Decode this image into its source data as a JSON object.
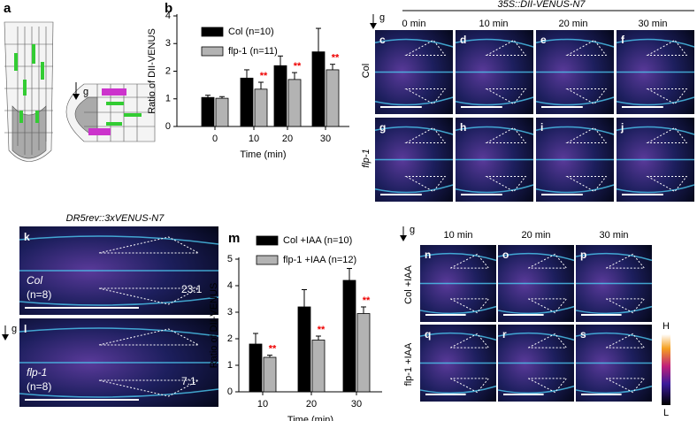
{
  "chart_data": [
    {
      "type": "bar",
      "label": "b",
      "y_label": "Ratio of DII-VENUS",
      "x_label": "Time (min)",
      "categories": [
        "0",
        "10",
        "20",
        "30"
      ],
      "series": [
        {
          "name": "Col (n=10)",
          "color": "#000000",
          "values": [
            1.05,
            1.75,
            2.2,
            2.7
          ],
          "errors": [
            0.08,
            0.3,
            0.35,
            0.85
          ],
          "labels": [
            null,
            null,
            null,
            null
          ]
        },
        {
          "name": "flp-1 (n=11)",
          "color": "#b3b3b3",
          "values": [
            1.02,
            1.35,
            1.7,
            2.05
          ],
          "errors": [
            0.06,
            0.25,
            0.25,
            0.2
          ],
          "labels": [
            null,
            "**",
            "**",
            "**"
          ]
        }
      ],
      "ylim": [
        0,
        4
      ],
      "yticks": [
        0,
        1,
        2,
        3,
        4
      ]
    },
    {
      "type": "bar",
      "label": "m",
      "y_label": "Ratio of DII-VENUS",
      "x_label": "Time (min)",
      "categories": [
        "10",
        "20",
        "30"
      ],
      "series": [
        {
          "name": "Col +IAA (n=10)",
          "color": "#000000",
          "values": [
            1.8,
            3.2,
            4.2
          ],
          "errors": [
            0.4,
            0.65,
            0.45
          ],
          "labels": [
            null,
            null,
            null
          ]
        },
        {
          "name": "flp-1 +IAA (n=12)",
          "color": "#b3b3b3",
          "values": [
            1.3,
            1.95,
            2.95
          ],
          "errors": [
            0.08,
            0.15,
            0.25
          ],
          "labels": [
            "**",
            "**",
            "**"
          ]
        }
      ],
      "ylim": [
        0,
        5
      ],
      "yticks": [
        0,
        1,
        2,
        3,
        4,
        5
      ]
    }
  ],
  "panel_a": {
    "label": "a",
    "gravity": "g"
  },
  "top_right": {
    "title": "35S::DII-VENUS-N7",
    "gravity": "g",
    "times": [
      "0 min",
      "10 min",
      "20 min",
      "30 min"
    ],
    "rows": [
      "Col",
      "flp-1"
    ],
    "panel_labels": [
      "c",
      "d",
      "e",
      "f",
      "g",
      "h",
      "i",
      "j"
    ]
  },
  "bottom_left": {
    "title": "DR5rev::3xVENUS-N7",
    "gravity": "g",
    "panel_labels": [
      "k",
      "l"
    ],
    "rows": [
      {
        "genotype": "Col",
        "n": "(n=8)",
        "ratio": "23:1"
      },
      {
        "genotype": "flp-1",
        "n": "(n=8)",
        "ratio": "7:1"
      }
    ]
  },
  "bottom_right": {
    "gravity": "g",
    "times": [
      "10 min",
      "20 min",
      "30 min"
    ],
    "rows": [
      "Col +IAA",
      "flp-1 +IAA"
    ],
    "panel_labels": [
      "n",
      "o",
      "p",
      "q",
      "r",
      "s"
    ],
    "scale_high": "H",
    "scale_low": "L"
  }
}
